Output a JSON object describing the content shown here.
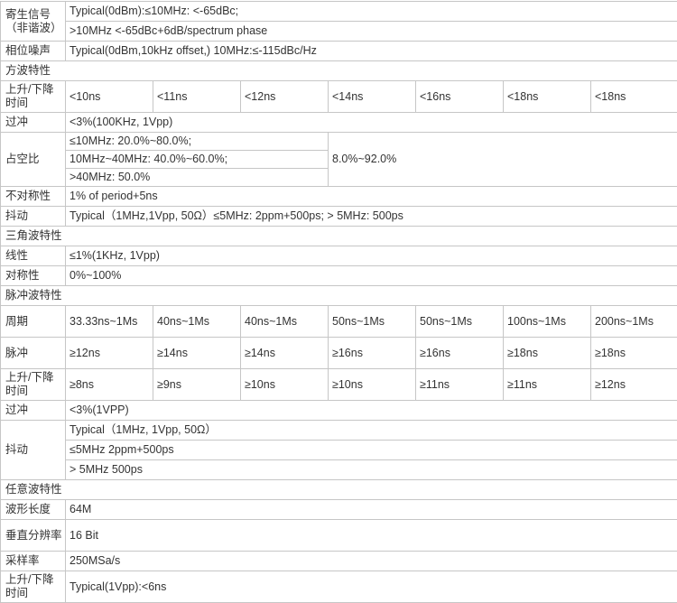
{
  "rows": [
    {
      "label": "寄生信号（非谐波）",
      "lines": [
        "Typical(0dBm):≤10MHz: <-65dBc;",
        ">10MHz <-65dBc+6dB/spectrum phase"
      ]
    },
    {
      "label": "相位噪声",
      "lines": [
        "Typical(0dBm,10kHz offset,) 10MHz:≤-115dBc/Hz"
      ]
    },
    {
      "section": "方波特性"
    },
    {
      "label": "上升/下降时间",
      "cols": [
        "<10ns",
        "<11ns",
        "<12ns",
        "<14ns",
        "<16ns",
        "<18ns",
        "<18ns"
      ]
    },
    {
      "label": "过冲",
      "lines": [
        "<3%(100KHz, 1Vpp)"
      ]
    },
    {
      "label": "占空比",
      "lines": [
        "≤10MHz: 20.0%~80.0%;",
        "10MHz~40MHz: 40.0%~60.0%;",
        " >40MHz: 50.0%"
      ],
      "side": "8.0%~92.0%"
    },
    {
      "label": "不对称性",
      "lines": [
        "1% of period+5ns"
      ]
    },
    {
      "label": "抖动",
      "lines": [
        "Typical（1MHz,1Vpp, 50Ω）≤5MHz: 2ppm+500ps; > 5MHz: 500ps"
      ]
    },
    {
      "section": "三角波特性"
    },
    {
      "label": "线性",
      "lines": [
        "≤1%(1KHz, 1Vpp)"
      ]
    },
    {
      "label": "对称性",
      "lines": [
        "0%~100%"
      ]
    },
    {
      "section": "脉冲波特性"
    },
    {
      "label": "周期",
      "cols": [
        "33.33ns~1Ms",
        "40ns~1Ms",
        "40ns~1Ms",
        "50ns~1Ms",
        "50ns~1Ms",
        "100ns~1Ms",
        "200ns~1Ms"
      ]
    },
    {
      "label": "脉冲",
      "cols": [
        "≥12ns",
        "≥14ns",
        "≥14ns",
        "≥16ns",
        "≥16ns",
        "≥18ns",
        "≥18ns"
      ]
    },
    {
      "label": "上升/下降时间",
      "cols": [
        "≥8ns",
        "≥9ns",
        "≥10ns",
        "≥10ns",
        "≥11ns",
        "≥11ns",
        "≥12ns"
      ]
    },
    {
      "label": "过冲",
      "lines": [
        "<3%(1VPP)"
      ]
    },
    {
      "label": "抖动",
      "lines": [
        "Typical（1MHz, 1Vpp, 50Ω）",
        "≤5MHz 2ppm+500ps",
        "> 5MHz 500ps"
      ]
    },
    {
      "section": "任意波特性"
    },
    {
      "label": "波形长度",
      "lines": [
        "64M"
      ]
    },
    {
      "label": "垂直分辨率",
      "lines": [
        "16 Bit"
      ],
      "tall": true
    },
    {
      "label": "采样率",
      "lines": [
        "250MSa/s"
      ]
    },
    {
      "label": "上升/下降时间",
      "lines": [
        "Typical(1Vpp):<6ns"
      ],
      "tall": true
    }
  ]
}
